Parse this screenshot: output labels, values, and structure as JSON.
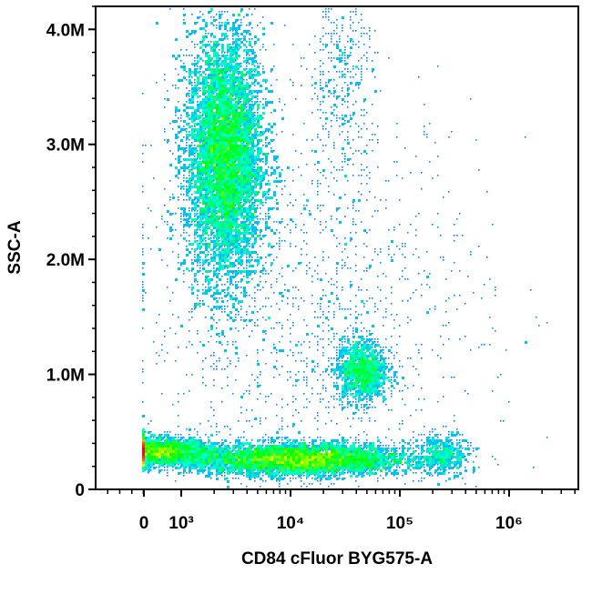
{
  "chart_data": {
    "type": "scatter",
    "subtype": "flow-cytometry-density-dot-plot",
    "title": "",
    "xlabel": "CD84 cFluor BYG575-A",
    "ylabel": "SSC-A",
    "x_scale": "biexponential",
    "x_tick_labels": [
      "0",
      "10³",
      "10⁴",
      "10⁵",
      "10⁶"
    ],
    "x_tick_values": [
      0,
      1000,
      10000,
      100000,
      1000000
    ],
    "xlim": [
      -2000,
      4000000
    ],
    "y_tick_labels": [
      "0",
      "1.0M",
      "2.0M",
      "3.0M",
      "4.0M"
    ],
    "y_tick_values": [
      0,
      1000000,
      2000000,
      3000000,
      4000000
    ],
    "ylim": [
      0,
      4200000
    ],
    "grid": false,
    "colormap": [
      "#0000ff",
      "#00a0ff",
      "#00ffd0",
      "#00ff00",
      "#ffff00",
      "#ff8000",
      "#ff0000"
    ],
    "populations": [
      {
        "center_x": 2500,
        "center_y": 2900000,
        "spread_x": 0.18,
        "spread_y": 550000,
        "density": "high",
        "weight": 9000
      },
      {
        "center_x": 600,
        "center_y": 330000,
        "spread_x": 0.25,
        "spread_y": 60000,
        "density": "medium",
        "weight": 2500
      },
      {
        "center_x": 12000,
        "center_y": 260000,
        "spread_x": 0.5,
        "spread_y": 70000,
        "density": "high",
        "weight": 6000
      },
      {
        "center_x": 45000,
        "center_y": 1030000,
        "spread_x": 0.12,
        "spread_y": 140000,
        "density": "medium",
        "weight": 1400
      },
      {
        "center_x": 250000,
        "center_y": 300000,
        "spread_x": 0.12,
        "spread_y": 90000,
        "density": "low",
        "weight": 500
      },
      {
        "center_x": 30000,
        "center_y": 3600000,
        "spread_x": 0.15,
        "spread_y": 500000,
        "density": "low",
        "weight": 450
      },
      {
        "center_x": 15000,
        "center_y": 1500000,
        "spread_x": 0.8,
        "spread_y": 900000,
        "density": "sparse",
        "weight": 1500
      }
    ]
  }
}
